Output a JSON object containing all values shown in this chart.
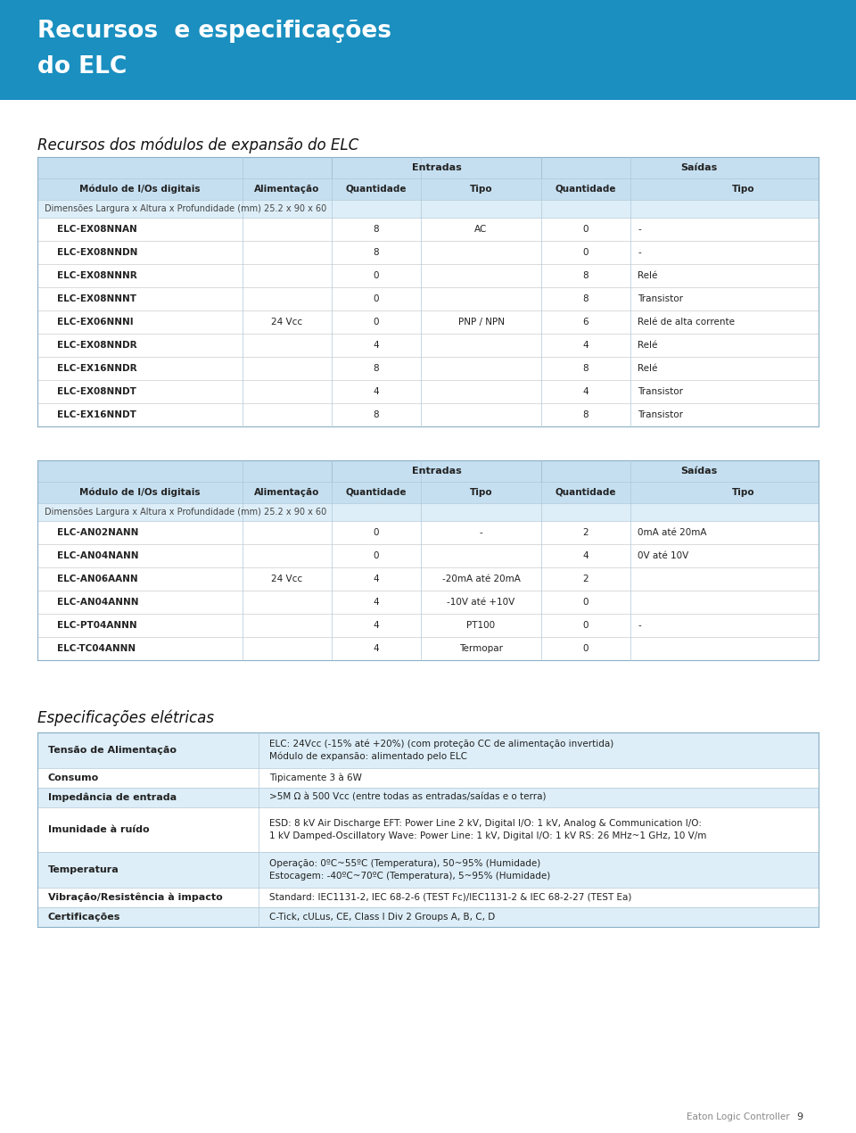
{
  "page_bg": "#ffffff",
  "header_bg": "#1a8fc0",
  "header_text_line1": "Recursos  e especificações",
  "header_text_line2": "do ELC",
  "header_text_color": "#ffffff",
  "section1_title": "Recursos dos módulos de expansão do ELC",
  "table_header_bg": "#c5dff0",
  "table_dim_row_bg": "#ddeef8",
  "table_row_bg": "#ffffff",
  "table_line_color": "#b0c8d8",
  "table1_dim_row": "Dimensões Largura x Altura x Profundidade (mm) 25.2 x 90 x 60",
  "table1_rows": [
    [
      "ELC-EX08NNAN",
      "",
      "8",
      "AC",
      "0",
      "-"
    ],
    [
      "ELC-EX08NNDN",
      "",
      "8",
      "",
      "0",
      "-"
    ],
    [
      "ELC-EX08NNNR",
      "",
      "0",
      "",
      "8",
      "Relé"
    ],
    [
      "ELC-EX08NNNT",
      "",
      "0",
      "",
      "8",
      "Transistor"
    ],
    [
      "ELC-EX06NNNI",
      "24 Vcc",
      "0",
      "PNP / NPN",
      "6",
      "Relé de alta corrente"
    ],
    [
      "ELC-EX08NNDR",
      "",
      "4",
      "",
      "4",
      "Relé"
    ],
    [
      "ELC-EX16NNDR",
      "",
      "8",
      "",
      "8",
      "Relé"
    ],
    [
      "ELC-EX08NNDT",
      "",
      "4",
      "",
      "4",
      "Transistor"
    ],
    [
      "ELC-EX16NNDT",
      "",
      "8",
      "",
      "8",
      "Transistor"
    ]
  ],
  "table2_dim_row": "Dimensões Largura x Altura x Profundidade (mm) 25.2 x 90 x 60",
  "table2_rows": [
    [
      "ELC-AN02NANN",
      "",
      "0",
      "-",
      "2",
      "0mA até 20mA"
    ],
    [
      "ELC-AN04NANN",
      "",
      "0",
      "",
      "4",
      "0V até 10V"
    ],
    [
      "ELC-AN06AANN",
      "24 Vcc",
      "4",
      "-20mA até 20mA",
      "2",
      ""
    ],
    [
      "ELC-AN04ANNN",
      "",
      "4",
      "-10V até +10V",
      "0",
      ""
    ],
    [
      "ELC-PT04ANNN",
      "",
      "4",
      "PT100",
      "0",
      "-"
    ],
    [
      "ELC-TC04ANNN",
      "",
      "4",
      "Termopar",
      "0",
      ""
    ]
  ],
  "section3_title": "Especificações elétricas",
  "spec_rows": [
    [
      "Tensão de Alimentação",
      "ELC: 24Vcc (-15% até +20%) (com proteção CC de alimentação invertida)\nMódulo de expansão: alimentado pelo ELC"
    ],
    [
      "Consumo",
      "Tipicamente 3 à 6W"
    ],
    [
      "Impedância de entrada",
      ">5M Ω à 500 Vcc (entre todas as entradas/saídas e o terra)"
    ],
    [
      "Imunidade à ruído",
      "ESD: 8 kV Air Discharge EFT: Power Line 2 kV, Digital I/O: 1 kV, Analog & Communication I/O:\n1 kV Damped-Oscillatory Wave: Power Line: 1 kV, Digital I/O: 1 kV RS: 26 MHz~1 GHz, 10 V/m"
    ],
    [
      "Temperatura",
      "Operação: 0ºC~55ºC (Temperatura), 50~95% (Humidade)\nEstocagem: -40ºC~70ºC (Temperatura), 5~95% (Humidade)"
    ],
    [
      "Vibração/Resistência à impacto",
      "Standard: IEC1131-2, IEC 68-2-6 (TEST Fc)/IEC1131-2 & IEC 68-2-27 (TEST Ea)"
    ],
    [
      "Certificações",
      "C-Tick, cULus, CE, Class I Div 2 Groups A, B, C, D"
    ]
  ],
  "footer_text": "Eaton Logic Controller",
  "footer_page": "9"
}
